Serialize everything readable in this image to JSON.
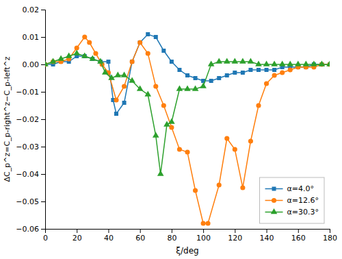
{
  "chart_data": {
    "type": "line",
    "x_label": "ξ/deg",
    "y_label": "ΔC_p^z=C_p-right^z−C_p-left^z",
    "xlim": [
      0,
      180
    ],
    "ylim": [
      -0.06,
      0.02
    ],
    "xticks": [
      0,
      20,
      40,
      60,
      80,
      100,
      120,
      140,
      160,
      180
    ],
    "yticks": [
      {
        "value": -0.06,
        "label": "−0.06"
      },
      {
        "value": -0.05,
        "label": "−0.05"
      },
      {
        "value": -0.04,
        "label": "−0.04"
      },
      {
        "value": -0.03,
        "label": "−0.03"
      },
      {
        "value": -0.02,
        "label": "−0.02"
      },
      {
        "value": -0.01,
        "label": "−0.01"
      },
      {
        "value": 0.0,
        "label": "0.00"
      },
      {
        "value": 0.01,
        "label": "0.01"
      },
      {
        "value": 0.02,
        "label": "0.02"
      }
    ],
    "grid": false,
    "legend": "lower right",
    "series": [
      {
        "name": "α=4.0°",
        "marker": "square",
        "x": [
          0,
          5,
          10,
          15,
          20,
          25,
          30,
          35,
          40,
          43,
          45,
          50,
          55,
          60,
          65,
          70,
          75,
          80,
          85,
          90,
          95,
          100,
          105,
          110,
          115,
          120,
          125,
          130,
          135,
          140,
          145,
          150,
          155,
          160,
          165,
          170,
          175,
          180
        ],
        "values": [
          0.0,
          0.0,
          0.001,
          0.001,
          0.003,
          0.003,
          0.002,
          0.001,
          0.001,
          -0.013,
          -0.018,
          -0.014,
          0.001,
          0.008,
          0.011,
          0.01,
          0.005,
          0.001,
          -0.002,
          -0.004,
          -0.005,
          -0.006,
          -0.006,
          -0.005,
          -0.004,
          -0.003,
          -0.003,
          -0.002,
          -0.002,
          -0.002,
          -0.002,
          -0.001,
          -0.001,
          -0.001,
          -0.001,
          0.0,
          0.0,
          0.0
        ]
      },
      {
        "name": "α=12.6°",
        "marker": "circle",
        "x": [
          0,
          5,
          10,
          15,
          20,
          25,
          28,
          32,
          36,
          40,
          45,
          50,
          55,
          60,
          65,
          70,
          75,
          80,
          85,
          90,
          95,
          100,
          103,
          110,
          115,
          120,
          125,
          130,
          135,
          140,
          145,
          150,
          155,
          160,
          165,
          170,
          175,
          180
        ],
        "values": [
          0.0,
          0.001,
          0.001,
          0.002,
          0.006,
          0.01,
          0.008,
          0.004,
          0.0,
          -0.003,
          -0.013,
          -0.008,
          0.001,
          0.008,
          0.004,
          -0.008,
          -0.015,
          -0.023,
          -0.031,
          -0.032,
          -0.046,
          -0.058,
          -0.058,
          -0.044,
          -0.027,
          -0.031,
          -0.045,
          -0.028,
          -0.015,
          -0.007,
          -0.004,
          -0.003,
          -0.002,
          -0.001,
          -0.001,
          -0.001,
          0.0,
          0.0
        ]
      },
      {
        "name": "α=30.3°",
        "marker": "triangle",
        "x": [
          0,
          5,
          10,
          15,
          20,
          25,
          30,
          35,
          38,
          42,
          46,
          50,
          55,
          60,
          65,
          70,
          73,
          77,
          80,
          85,
          90,
          95,
          100,
          105,
          110,
          115,
          120,
          125,
          130,
          135,
          140,
          145,
          150,
          155,
          160,
          165,
          170,
          175,
          180
        ],
        "values": [
          0.0,
          0.001,
          0.002,
          0.003,
          0.004,
          0.003,
          0.002,
          0.001,
          -0.003,
          -0.005,
          -0.004,
          -0.004,
          -0.006,
          -0.009,
          -0.011,
          -0.026,
          -0.04,
          -0.022,
          -0.021,
          -0.009,
          -0.009,
          -0.009,
          -0.008,
          0.0,
          0.001,
          0.001,
          0.001,
          0.001,
          0.001,
          0.0,
          0.0,
          0.0,
          0.0,
          0.0,
          0.0,
          0.0,
          0.0,
          0.0,
          0.0
        ]
      }
    ]
  }
}
